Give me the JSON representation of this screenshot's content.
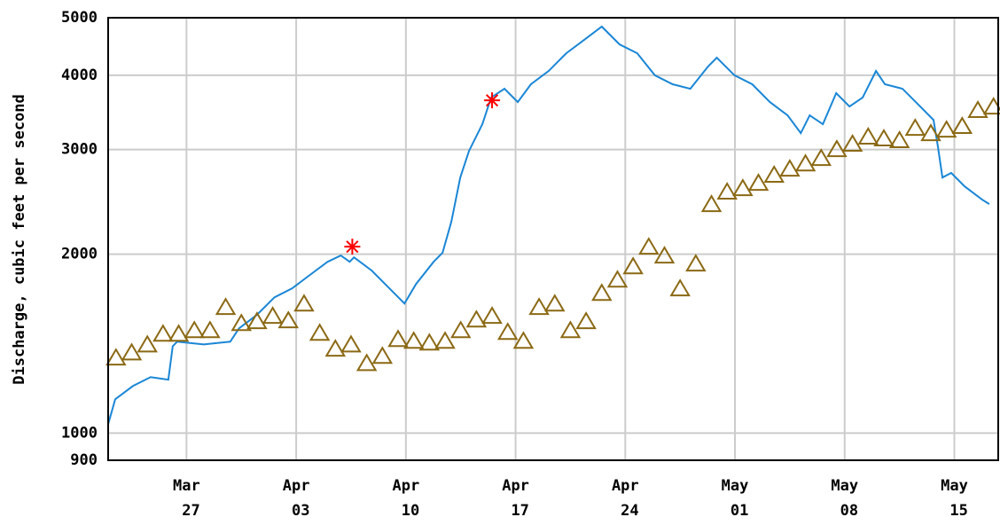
{
  "chart_data": {
    "type": "line",
    "y_label": "Discharge, cubic feet per second",
    "log_y": true,
    "grid": true,
    "ylim": [
      900,
      5000
    ],
    "yticks": [
      900,
      1000,
      2000,
      3000,
      4000,
      5000
    ],
    "xlim": [
      0,
      56.8
    ],
    "xticks": [
      {
        "value": 5,
        "label": "Mar 27"
      },
      {
        "value": 12,
        "label": "Apr 03"
      },
      {
        "value": 19,
        "label": "Apr 10"
      },
      {
        "value": 26,
        "label": "Apr 17"
      },
      {
        "value": 33,
        "label": "Apr 24"
      },
      {
        "value": 40,
        "label": "May 01"
      },
      {
        "value": 47,
        "label": "May 08"
      },
      {
        "value": 54,
        "label": "May 15"
      }
    ],
    "series": [
      {
        "type": "line",
        "color": "#1a86d6",
        "x": [
          0,
          0.45,
          1.58,
          2.71,
          3.84,
          4.12,
          4.4,
          6.1,
          7.79,
          8.35,
          9.48,
          10.61,
          11.74,
          12.87,
          14,
          14.85,
          15.41,
          15.69,
          16.82,
          17.95,
          18.91,
          19.65,
          20.77,
          21.34,
          21.9,
          22.47,
          23.03,
          23.88,
          24.44,
          25.29,
          26.14,
          26.98,
          28.11,
          29.24,
          30.37,
          31.5,
          32.63,
          33.76,
          34.89,
          36.02,
          37.15,
          38.28,
          38.84,
          39.97,
          41.1,
          42.23,
          43.36,
          44.2,
          44.77,
          45.61,
          46.46,
          47.31,
          48.15,
          49,
          49.57,
          50.69,
          51.82,
          52.67,
          52.95,
          53.24,
          53.8,
          54.65,
          55.77,
          56.23
        ],
        "values": [
          1035,
          1140,
          1200,
          1242,
          1230,
          1400,
          1425,
          1410,
          1425,
          1500,
          1580,
          1692,
          1752,
          1845,
          1942,
          1990,
          1942,
          1976,
          1877,
          1752,
          1652,
          1782,
          1942,
          2011,
          2268,
          2692,
          2985,
          3310,
          3670,
          3797,
          3606,
          3864,
          4068,
          4358,
          4588,
          4831,
          4510,
          4358,
          4000,
          3864,
          3797,
          4139,
          4283,
          4000,
          3864,
          3606,
          3425,
          3197,
          3425,
          3310,
          3733,
          3545,
          3670,
          4068,
          3864,
          3797,
          3545,
          3365,
          3036,
          2692,
          2740,
          2602,
          2471,
          2429
        ]
      },
      {
        "type": "triangle",
        "color": "#8b6914",
        "x": [
          0.5,
          1.5,
          2.5,
          3.5,
          4.5,
          5.5,
          6.5,
          7.5,
          8.5,
          9.5,
          10.5,
          11.5,
          12.5,
          13.5,
          14.5,
          15.5,
          16.5,
          17.5,
          18.5,
          19.5,
          20.5,
          21.5,
          22.5,
          23.5,
          24.5,
          25.5,
          26.5,
          27.5,
          28.5,
          29.5,
          30.5,
          31.5,
          32.5,
          33.5,
          34.5,
          35.5,
          36.5,
          37.5,
          38.5,
          39.5,
          40.5,
          41.5,
          42.5,
          43.5,
          44.5,
          45.5,
          46.5,
          47.5,
          48.5,
          49.5,
          50.5,
          51.5,
          52.5,
          53.5,
          54.5,
          55.5,
          56.5
        ],
        "values": [
          1340,
          1367,
          1410,
          1470,
          1470,
          1490,
          1490,
          1630,
          1532,
          1543,
          1575,
          1548,
          1652,
          1475,
          1387,
          1410,
          1312,
          1349,
          1440,
          1430,
          1420,
          1430,
          1490,
          1553,
          1575,
          1480,
          1430,
          1630,
          1652,
          1490,
          1543,
          1722,
          1813,
          1909,
          2059,
          1990,
          1752,
          1929,
          2429,
          2549,
          2584,
          2638,
          2721,
          2787,
          2844,
          2904,
          3006,
          3069,
          3155,
          3133,
          3112,
          3264,
          3197,
          3242,
          3287,
          3498,
          3545
        ]
      },
      {
        "type": "asterisk",
        "color": "#ff0000",
        "x": [
          15.58,
          24.5
        ],
        "values": [
          2059,
          3630
        ]
      }
    ]
  }
}
